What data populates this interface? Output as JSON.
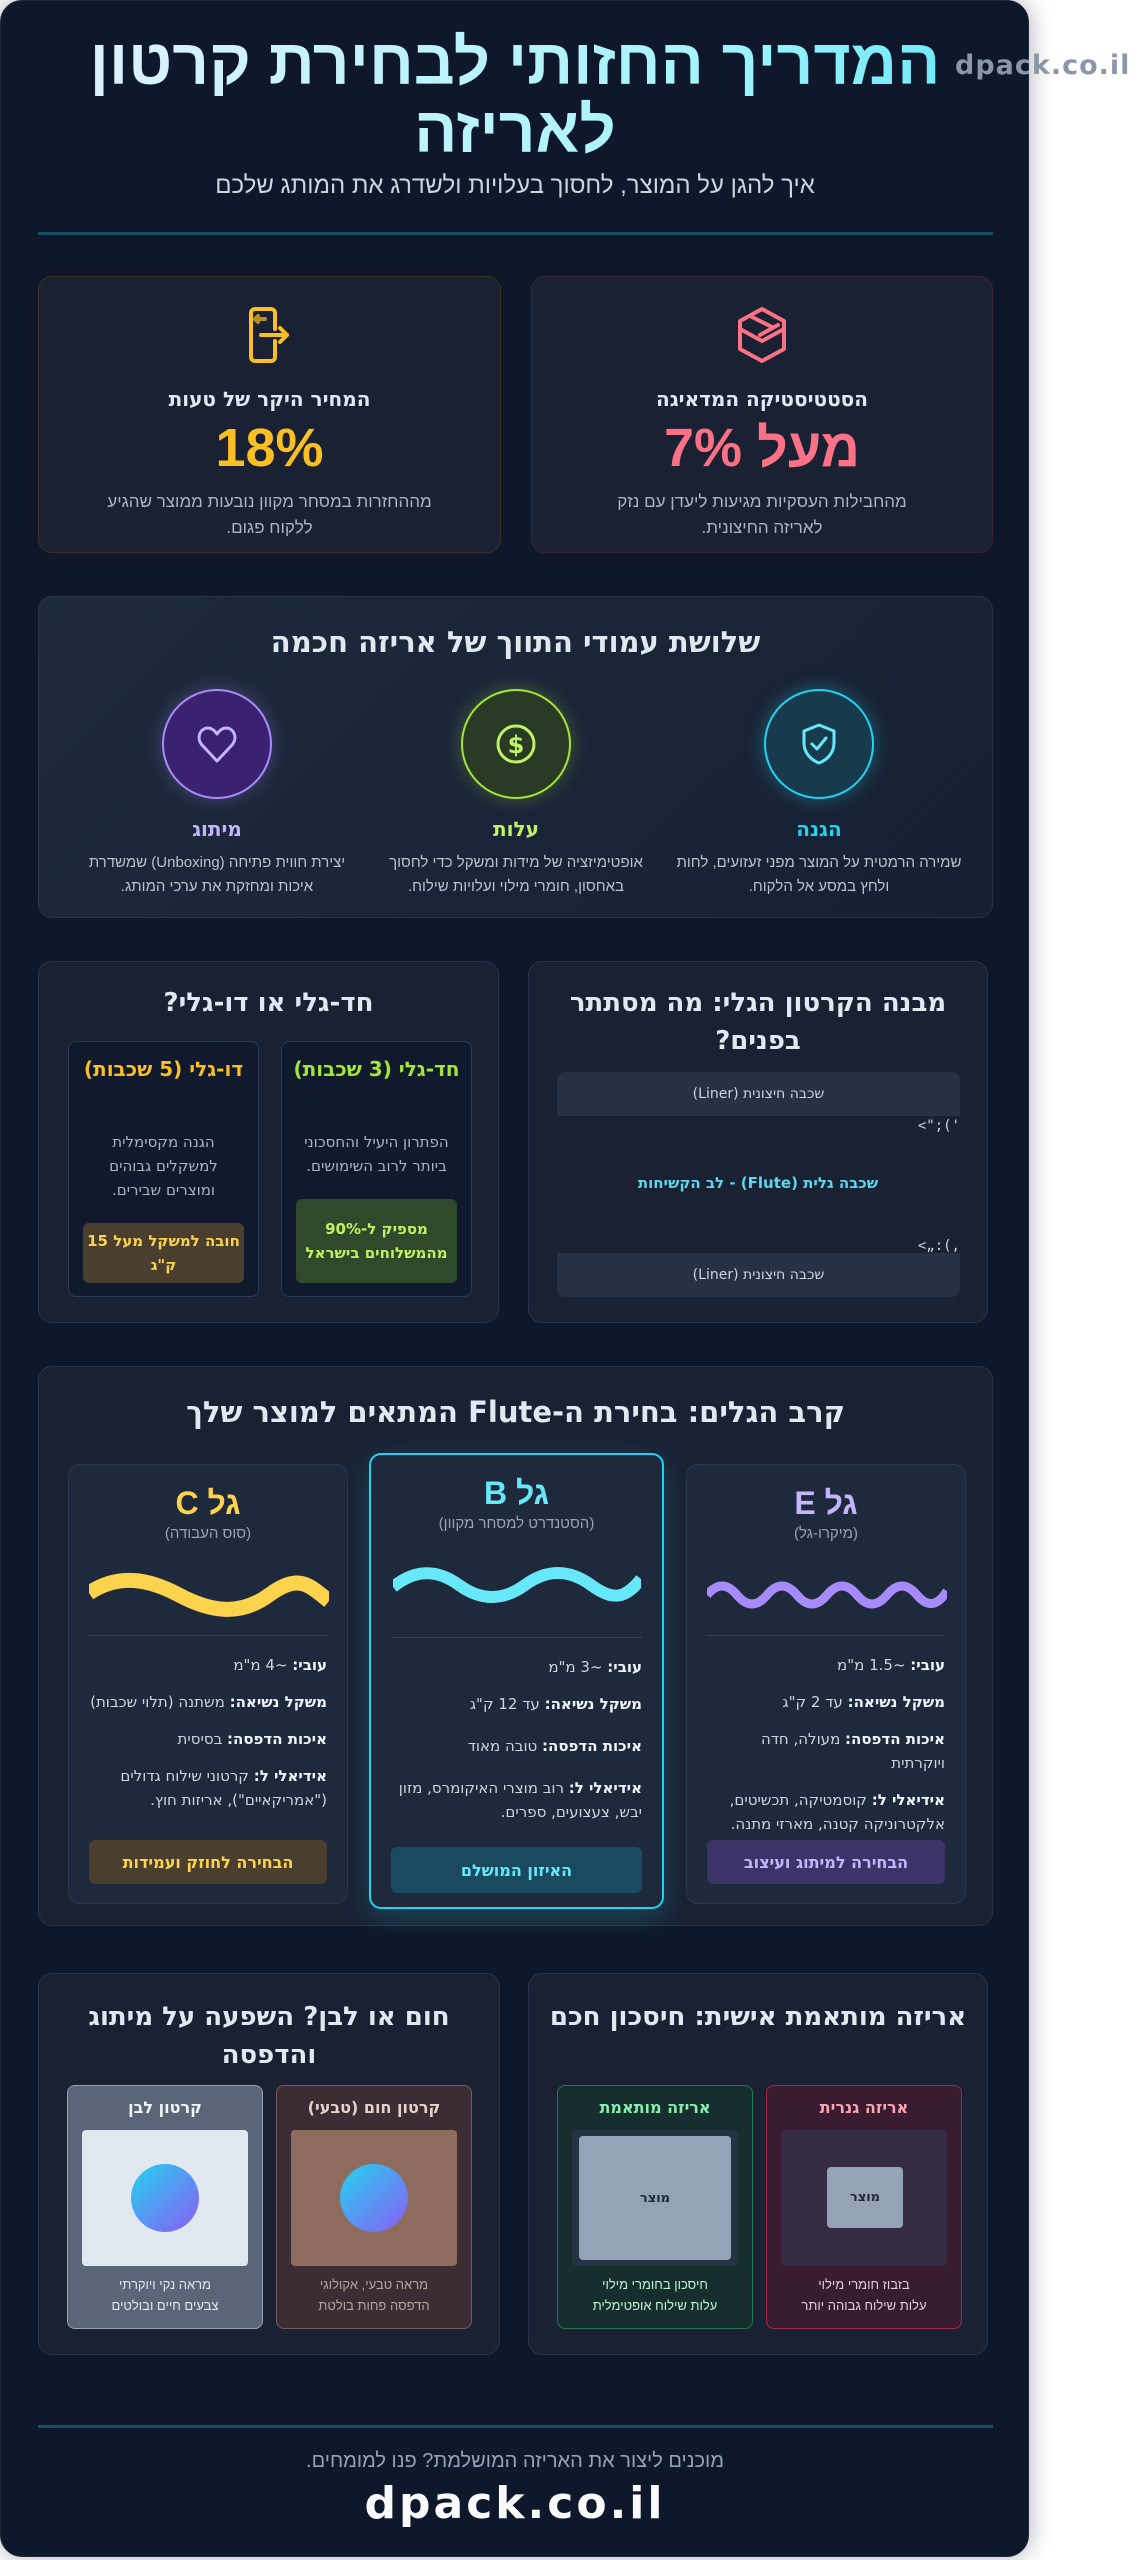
{
  "watermark": "dpack.co.il",
  "header": {
    "title": "המדריך החזותי לבחירת קרטון לאריזה",
    "subtitle": "איך להגן על המוצר, לחסוך בעלויות ולשדרג את המותג שלכם"
  },
  "stats": [
    {
      "icon": "box-damage-icon",
      "heading": "הסטטיסטיקה המדאיגה",
      "value": "מעל 7%",
      "desc": "מהחבילות העסקיות מגיעות ליעדן עם נזק לאריזה החיצונית.",
      "color": "#fb7185"
    },
    {
      "icon": "return-door-icon",
      "heading": "המחיר היקר של טעות",
      "value": "18%",
      "desc": "מההחזרות במסחר מקוון נובעות ממוצר שהגיע ללקוח פגום.",
      "color": "#fbbf24"
    }
  ],
  "pillars": {
    "title": "שלושת עמודי התווך של אריזה חכמה",
    "items": [
      {
        "icon": "shield-check-icon",
        "label": "הגנה",
        "desc": "שמירה הרמטית על המוצר מפני זעזועים, לחות ולחץ במסע אל הלקוח.",
        "color": "#22d3ee"
      },
      {
        "icon": "dollar-coin-icon",
        "label": "עלות",
        "desc": "אופטימיזציה של מידות ומשקל כדי לחסוך באחסון, חומרי מילוי ועלויות שילוח.",
        "color": "#bef264"
      },
      {
        "icon": "heart-icon",
        "label": "מיתוג",
        "desc": "יצירת חווית פתיחה (Unboxing) שמשדרת איכות ומחזקת את ערכי המותג.",
        "color": "#c4b5fd"
      }
    ]
  },
  "structure": {
    "title": "מבנה הקרטון הגלי: מה מסתתר בפנים?",
    "top_liner": "שכבה חיצונית (Liner)",
    "flute": "שכבה גלית (Flute) - לב הקשיחות",
    "bottom_liner": "שכבה חיצונית (Liner)",
    "glyph_top": "<\";('",
    "glyph_bottom": "<„:(,"
  },
  "wall": {
    "title": "חד-גלי או דו-גלי?",
    "single": {
      "heading": "חד-גלי (3 שכבות)",
      "desc": "הפתרון היעיל והחסכוני ביותר לרוב השימושים.",
      "badge": "מספיק ל-90% מהמשלוחים בישראל"
    },
    "double": {
      "heading": "דו-גלי (5 שכבות)",
      "desc": "הגנה מקסימלית למשקלים גבוהים ומוצרים שבירים.",
      "badge": "חובה למשקל מעל 15 ק\"ג"
    }
  },
  "flutes": {
    "title": "קרב הגלים: בחירת ה-Flute המתאים למוצר שלך",
    "labels": {
      "thickness": "עובי:",
      "load": "משקל נשיאה:",
      "print": "איכות הדפסה:",
      "ideal": "אידיאלי ל:"
    },
    "cards": [
      {
        "name": "גל E",
        "sub": "(מיקרו-גל)",
        "thickness": "~1.5 מ\"מ",
        "load": "עד 2 ק\"ג",
        "print": "מעולה, חדה ויוקרתית",
        "ideal": "קוסמטיקה, תכשיטים, אלקטרוניקה קטנה, מארזי מתנה.",
        "button": "הבחירה למיתוג ועיצוב",
        "color": "#a78bfa"
      },
      {
        "name": "גל B",
        "sub": "(הסטנדרט למסחר מקוון)",
        "thickness": "~3 מ\"מ",
        "load": "עד 12 ק\"ג",
        "print": "טובה מאוד",
        "ideal": "רוב מוצרי האיקומרס, מזון יבש, צעצועים, ספרים.",
        "button": "האיזון המושלם",
        "color": "#67e8f9",
        "featured": true
      },
      {
        "name": "גל C",
        "sub": "(סוס העבודה)",
        "thickness": "~4 מ\"מ",
        "load": "משתנה (תלוי שכבות)",
        "print": "בסיסית",
        "ideal": "קרטוני שילוח גדולים (\"אמריקאיים\"), אריזות חוץ.",
        "button": "הבחירה לחוזק ועמידות",
        "color": "#fcd34d"
      }
    ]
  },
  "custom": {
    "title": "אריזה מותאמת אישית: חיסכון חכם",
    "generic": {
      "heading": "אריזה גנרית",
      "product": "מוצר",
      "line1": "בזבוז חומרי מילוי",
      "line2": "עלות שילוח גבוהה יותר"
    },
    "fitted": {
      "heading": "אריזה מותאמת",
      "product": "מוצר",
      "line1": "חיסכון בחומרי מילוי",
      "line2": "עלות שילוח אופטימלית"
    }
  },
  "color_section": {
    "title": "חום או לבן? השפעה על מיתוג והדפסה",
    "kraft": {
      "heading": "קרטון חום (טבעי)",
      "line1": "מראה טבעי, אקולוגי",
      "line2": "הדפסה פחות בולטת"
    },
    "white": {
      "heading": "קרטון לבן",
      "line1": "מראה נקי ויוקרתי",
      "line2": "צבעים חיים ובולטים"
    }
  },
  "footer": {
    "text": "מוכנים ליצור את האריזה המושלמת? פנו למומחים.",
    "brand": "dpack.co.il"
  }
}
